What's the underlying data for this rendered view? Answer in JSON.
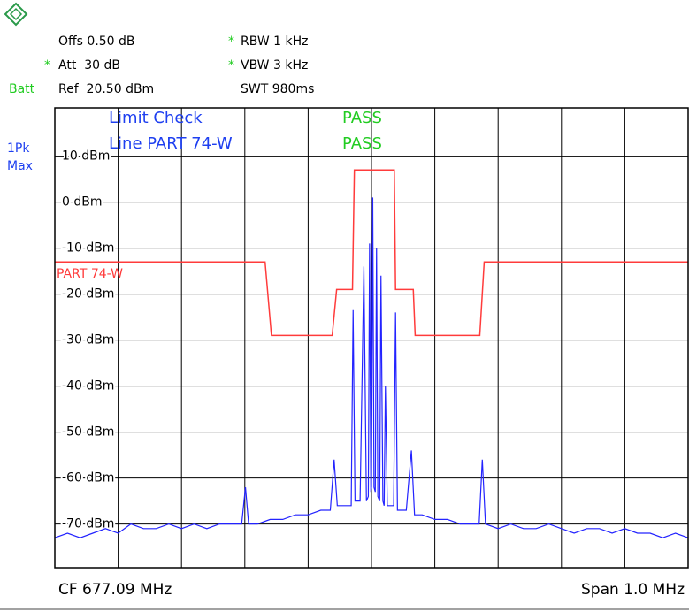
{
  "chart_data": {
    "type": "line",
    "annotations": [
      "Offs 0.50 dB",
      "*",
      "RBW 1 kHz",
      "*",
      "Att  30 dB",
      "*",
      "VBW 3 kHz",
      "Batt",
      "Ref  20.50 dBm",
      "SWT 980ms",
      "Limit Check",
      "PASS",
      "Line PART 74-W",
      "PASS",
      "1Pk",
      "Max",
      "CF 677.09 MHz",
      "Span 1.0 MHz"
    ],
    "xlim": [
      676.59,
      677.59
    ],
    "xticks": [
      676.59,
      676.69,
      676.79,
      676.89,
      676.99,
      677.09,
      677.19,
      677.29,
      677.39,
      677.49,
      677.59
    ],
    "ylim": [
      -79.5,
      20.5
    ],
    "yticks": [
      {
        "value": 10,
        "label": "10 dBm"
      },
      {
        "value": 0,
        "label": "0 dBm"
      },
      {
        "value": -10,
        "label": "-10 dBm"
      },
      {
        "value": -20,
        "label": "-20 dBm"
      },
      {
        "value": -30,
        "label": "-30 dBm"
      },
      {
        "value": -40,
        "label": "-40 dBm"
      },
      {
        "value": -50,
        "label": "-50 dBm"
      },
      {
        "value": -60,
        "label": "-60 dBm"
      },
      {
        "value": -70,
        "label": "-70 dBm"
      }
    ],
    "grid": true,
    "series": [
      {
        "name": "PART 74-W",
        "color": "#ff3b3b",
        "x": [
          676.59,
          676.922,
          676.932,
          677.028,
          677.035,
          677.06,
          677.063,
          677.126,
          677.128,
          677.156,
          677.159,
          677.261,
          677.268,
          677.59
        ],
        "values": [
          -13,
          -13,
          -29,
          -29,
          -19,
          -19,
          7,
          7,
          -19,
          -19,
          -29,
          -29,
          -13,
          -13
        ]
      },
      {
        "color": "#2323ff",
        "x": [
          676.59,
          676.61,
          676.63,
          676.65,
          676.67,
          676.69,
          676.71,
          676.73,
          676.75,
          676.77,
          676.79,
          676.81,
          676.83,
          676.85,
          676.87,
          676.885,
          676.891,
          676.896,
          676.91,
          676.93,
          676.95,
          676.97,
          676.99,
          677.01,
          677.025,
          677.031,
          677.036,
          677.05,
          677.058,
          677.061,
          677.064,
          677.072,
          677.078,
          677.082,
          677.085,
          677.087,
          677.089,
          677.09,
          677.092,
          677.094,
          677.096,
          677.098,
          677.1,
          677.103,
          677.105,
          677.108,
          677.11,
          677.112,
          677.115,
          677.125,
          677.128,
          677.131,
          677.145,
          677.153,
          677.158,
          677.17,
          677.19,
          677.21,
          677.23,
          677.25,
          677.26,
          677.265,
          677.27,
          677.29,
          677.31,
          677.33,
          677.35,
          677.37,
          677.39,
          677.41,
          677.43,
          677.45,
          677.47,
          677.49,
          677.51,
          677.53,
          677.55,
          677.57,
          677.59
        ],
        "values": [
          -73,
          -72,
          -73,
          -72,
          -71,
          -72,
          -70,
          -71,
          -71,
          -70,
          -71,
          -70,
          -71,
          -70,
          -70,
          -70,
          -62,
          -70,
          -70,
          -69,
          -69,
          -68,
          -68,
          -67,
          -67,
          -56,
          -66,
          -66,
          -66,
          -23.5,
          -65,
          -65,
          -14,
          -65,
          -64,
          -9,
          -63,
          -62,
          1,
          -62,
          -63,
          -10,
          -64,
          -65,
          -16,
          -65,
          -66,
          -40,
          -66,
          -66,
          -24,
          -67,
          -67,
          -54,
          -68,
          -68,
          -69,
          -69,
          -70,
          -70,
          -70,
          -56,
          -70,
          -71,
          -70,
          -71,
          -71,
          -70,
          -71,
          -72,
          -71,
          -71,
          -72,
          -71,
          -72,
          -72,
          -73,
          -72,
          -73
        ]
      }
    ]
  }
}
